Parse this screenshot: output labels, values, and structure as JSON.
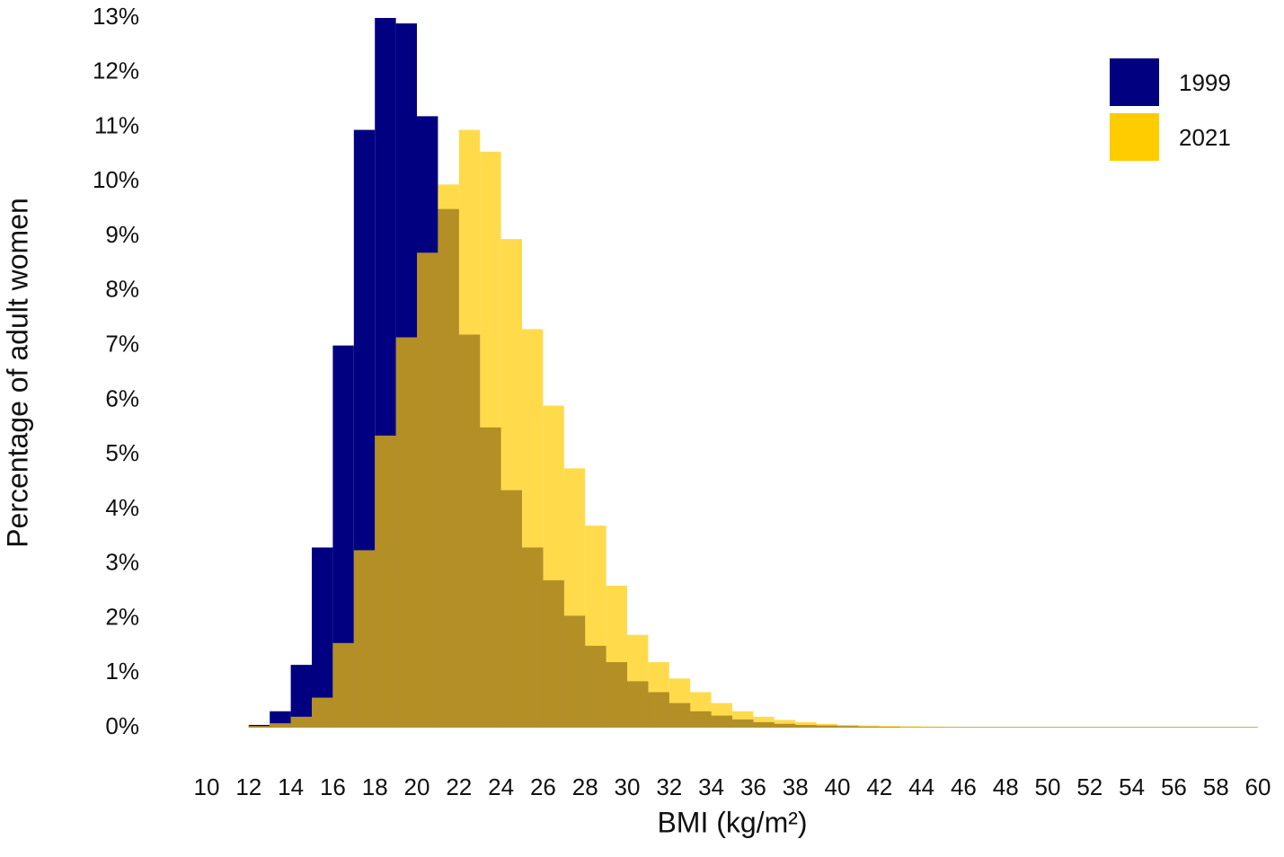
{
  "chart_data": {
    "type": "histogram",
    "xlabel": "BMI (kg/m²)",
    "ylabel": "Percentage of adult women",
    "bins": [
      12,
      13,
      14,
      15,
      16,
      17,
      18,
      19,
      20,
      21,
      22,
      23,
      24,
      25,
      26,
      27,
      28,
      29,
      30,
      31,
      32,
      33,
      34,
      35,
      36,
      37,
      38,
      39,
      40,
      41,
      42,
      43,
      44,
      45,
      46,
      47,
      48,
      49,
      50,
      51,
      52,
      53,
      54,
      55,
      56,
      57,
      58,
      59,
      60
    ],
    "series": [
      {
        "name": "1999",
        "color": "#000080",
        "opacity": 1,
        "values": [
          0.05,
          0.3,
          1.15,
          3.3,
          7.0,
          10.95,
          13.0,
          12.9,
          11.2,
          9.5,
          7.2,
          5.5,
          4.35,
          3.3,
          2.7,
          2.05,
          1.5,
          1.2,
          0.85,
          0.65,
          0.45,
          0.3,
          0.22,
          0.15,
          0.1,
          0.07,
          0.05,
          0.04,
          0.03,
          0.02,
          0.015,
          0.01,
          0.01,
          0.01,
          0.01,
          0.01,
          0.01,
          0.01,
          0.01,
          0.01,
          0.01,
          0.01,
          0.01,
          0.01,
          0.01,
          0.01,
          0.01,
          0.01
        ]
      },
      {
        "name": "2021",
        "color": "#ffcc00",
        "opacity": 0.7,
        "values": [
          0.03,
          0.08,
          0.2,
          0.55,
          1.55,
          3.25,
          5.35,
          7.15,
          8.7,
          9.95,
          10.95,
          10.55,
          8.95,
          7.3,
          5.9,
          4.75,
          3.7,
          2.6,
          1.7,
          1.2,
          0.9,
          0.65,
          0.45,
          0.3,
          0.2,
          0.14,
          0.1,
          0.07,
          0.05,
          0.04,
          0.03,
          0.025,
          0.02,
          0.015,
          0.01,
          0.01,
          0.01,
          0.01,
          0.01,
          0.01,
          0.01,
          0.01,
          0.01,
          0.01,
          0.01,
          0.01,
          0.01,
          0.01
        ]
      }
    ],
    "xlim": [
      10,
      60
    ],
    "xticks": [
      10,
      12,
      14,
      16,
      18,
      20,
      22,
      24,
      26,
      28,
      30,
      32,
      34,
      36,
      38,
      40,
      42,
      44,
      46,
      48,
      50,
      52,
      54,
      56,
      58,
      60
    ],
    "ylim": [
      0,
      13
    ],
    "yticks": [
      {
        "value": 0,
        "label": "0%"
      },
      {
        "value": 1,
        "label": "1%"
      },
      {
        "value": 2,
        "label": "2%"
      },
      {
        "value": 3,
        "label": "3%"
      },
      {
        "value": 4,
        "label": "4%"
      },
      {
        "value": 5,
        "label": "5%"
      },
      {
        "value": 6,
        "label": "6%"
      },
      {
        "value": 7,
        "label": "7%"
      },
      {
        "value": 8,
        "label": "8%"
      },
      {
        "value": 9,
        "label": "9%"
      },
      {
        "value": 10,
        "label": "10%"
      },
      {
        "value": 11,
        "label": "11%"
      },
      {
        "value": 12,
        "label": "12%"
      },
      {
        "value": 13,
        "label": "13%"
      }
    ],
    "grid": false,
    "legend": "upper right"
  }
}
